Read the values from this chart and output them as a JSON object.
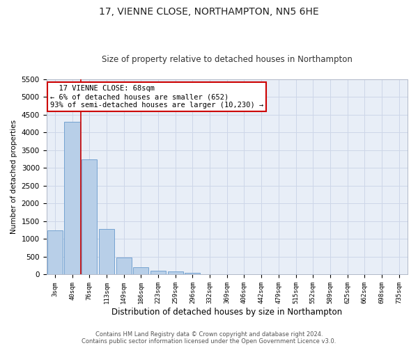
{
  "title": "17, VIENNE CLOSE, NORTHAMPTON, NN5 6HE",
  "subtitle": "Size of property relative to detached houses in Northampton",
  "xlabel": "Distribution of detached houses by size in Northampton",
  "ylabel": "Number of detached properties",
  "footer_line1": "Contains HM Land Registry data © Crown copyright and database right 2024.",
  "footer_line2": "Contains public sector information licensed under the Open Government Licence v3.0.",
  "annotation_title": "17 VIENNE CLOSE: 68sqm",
  "annotation_line1": "← 6% of detached houses are smaller (652)",
  "annotation_line2": "93% of semi-detached houses are larger (10,230) →",
  "bar_color": "#b8cfe8",
  "bar_edge_color": "#6699cc",
  "vline_color": "#cc0000",
  "annotation_box_facecolor": "#ffffff",
  "annotation_box_edgecolor": "#cc0000",
  "categories": [
    "3sqm",
    "40sqm",
    "76sqm",
    "113sqm",
    "149sqm",
    "186sqm",
    "223sqm",
    "259sqm",
    "296sqm",
    "332sqm",
    "369sqm",
    "406sqm",
    "442sqm",
    "479sqm",
    "515sqm",
    "552sqm",
    "589sqm",
    "625sqm",
    "662sqm",
    "698sqm",
    "735sqm"
  ],
  "bar_values": [
    1250,
    4300,
    3250,
    1280,
    480,
    215,
    105,
    80,
    55,
    0,
    0,
    0,
    0,
    0,
    0,
    0,
    0,
    0,
    0,
    0,
    0
  ],
  "ylim": [
    0,
    5500
  ],
  "yticks": [
    0,
    500,
    1000,
    1500,
    2000,
    2500,
    3000,
    3500,
    4000,
    4500,
    5000,
    5500
  ],
  "grid_color": "#cdd6e8",
  "background_color": "#e8eef7",
  "title_fontsize": 10,
  "subtitle_fontsize": 9
}
